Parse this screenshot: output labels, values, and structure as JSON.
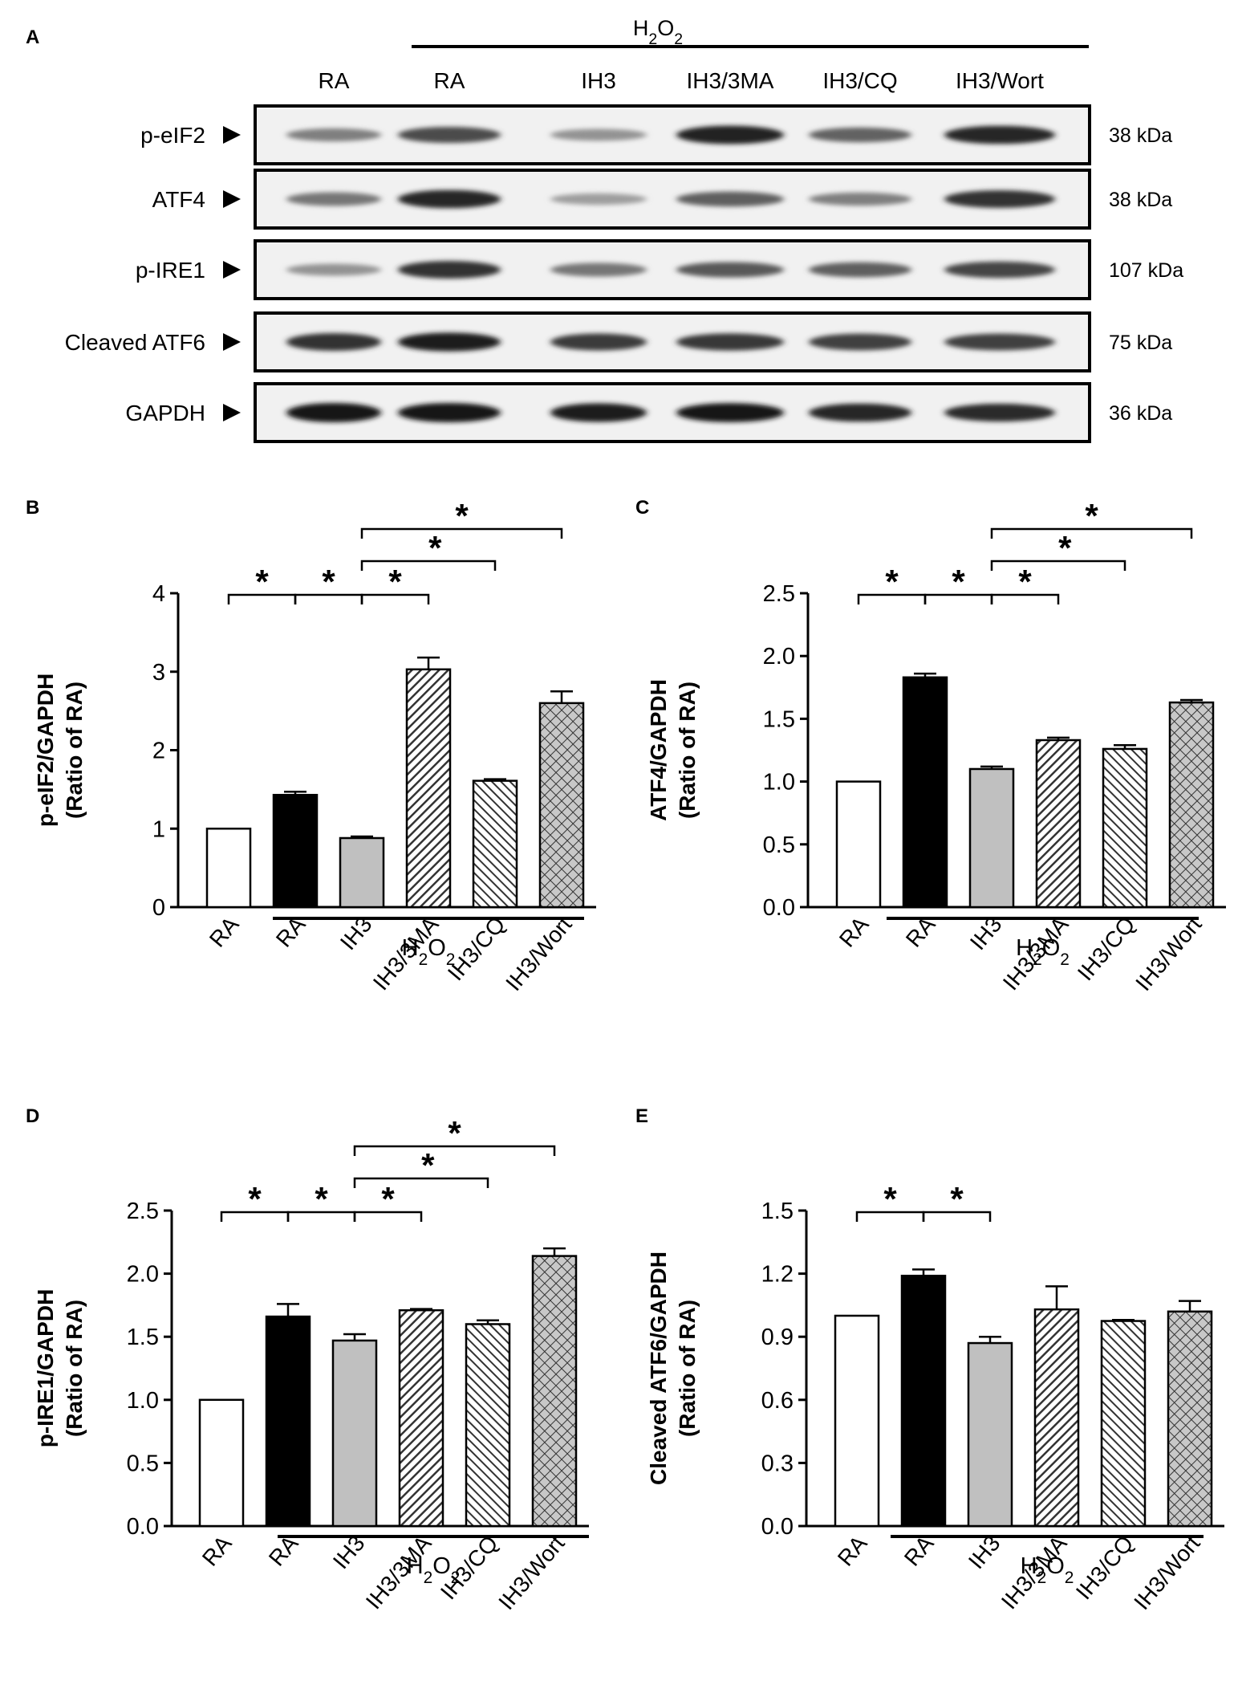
{
  "treatment_label": "H2O2",
  "blot": {
    "panel_label": "A",
    "lanes": [
      "RA",
      "RA",
      "IH3",
      "IH3/3MA",
      "IH3/CQ",
      "IH3/Wort"
    ],
    "rows": [
      {
        "name": "p-eIF2",
        "kda": "38 kDa",
        "intensity": [
          0.45,
          0.72,
          0.35,
          0.92,
          0.6,
          0.9
        ]
      },
      {
        "name": "ATF4",
        "kda": "38 kDa",
        "intensity": [
          0.5,
          0.9,
          0.3,
          0.62,
          0.45,
          0.85
        ]
      },
      {
        "name": "p-IRE1",
        "kda": "107 kDa",
        "intensity": [
          0.35,
          0.85,
          0.5,
          0.65,
          0.62,
          0.75
        ]
      },
      {
        "name": "Cleaved ATF6",
        "kda": "75 kDa",
        "intensity": [
          0.85,
          0.95,
          0.8,
          0.82,
          0.78,
          0.78
        ]
      },
      {
        "name": "GAPDH",
        "kda": "36 kDa",
        "intensity": [
          1.0,
          1.0,
          0.95,
          0.98,
          0.9,
          0.88
        ]
      }
    ]
  },
  "chart_data": [
    {
      "panel": "B",
      "type": "bar",
      "categories": [
        "RA",
        "RA",
        "IH3",
        "IH3/3MA",
        "IH3/CQ",
        "IH3/Wort"
      ],
      "values": [
        1.0,
        1.43,
        0.88,
        3.03,
        1.61,
        2.6
      ],
      "errors": [
        0,
        0.04,
        0.02,
        0.15,
        0.02,
        0.15
      ],
      "ylabel": [
        "p-eIF2/GAPDH",
        "(Ratio of RA)"
      ],
      "ylim": [
        0,
        4
      ],
      "yticks": [
        "0",
        "1",
        "2",
        "3",
        "4"
      ],
      "significance": [
        {
          "from": 0,
          "to": 1,
          "label": "*"
        },
        {
          "from": 1,
          "to": 2,
          "label": "*"
        },
        {
          "from": 2,
          "to": 3,
          "label": "*"
        },
        {
          "from": 2,
          "to": 4,
          "label": "*"
        },
        {
          "from": 2,
          "to": 5,
          "label": "*"
        }
      ]
    },
    {
      "panel": "C",
      "type": "bar",
      "categories": [
        "RA",
        "RA",
        "IH3",
        "IH3/3MA",
        "IH3/CQ",
        "IH3/Wort"
      ],
      "values": [
        1.0,
        1.83,
        1.1,
        1.33,
        1.26,
        1.63
      ],
      "errors": [
        0,
        0.03,
        0.02,
        0.02,
        0.03,
        0.02
      ],
      "ylabel": [
        "ATF4/GAPDH",
        "(Ratio of RA)"
      ],
      "ylim": [
        0,
        2.5
      ],
      "yticks": [
        "0.0",
        "0.5",
        "1.0",
        "1.5",
        "2.0",
        "2.5"
      ],
      "significance": [
        {
          "from": 0,
          "to": 1,
          "label": "*"
        },
        {
          "from": 1,
          "to": 2,
          "label": "*"
        },
        {
          "from": 2,
          "to": 3,
          "label": "*"
        },
        {
          "from": 2,
          "to": 4,
          "label": "*"
        },
        {
          "from": 2,
          "to": 5,
          "label": "*"
        }
      ]
    },
    {
      "panel": "D",
      "type": "bar",
      "categories": [
        "RA",
        "RA",
        "IH3",
        "IH3/3MA",
        "IH3/CQ",
        "IH3/Wort"
      ],
      "values": [
        1.0,
        1.66,
        1.47,
        1.71,
        1.6,
        2.14
      ],
      "errors": [
        0,
        0.1,
        0.05,
        0.01,
        0.03,
        0.06
      ],
      "ylabel": [
        "p-IRE1/GAPDH",
        "(Ratio of RA)"
      ],
      "ylim": [
        0,
        2.5
      ],
      "yticks": [
        "0.0",
        "0.5",
        "1.0",
        "1.5",
        "2.0",
        "2.5"
      ],
      "significance": [
        {
          "from": 0,
          "to": 1,
          "label": "*"
        },
        {
          "from": 1,
          "to": 2,
          "label": "*"
        },
        {
          "from": 2,
          "to": 3,
          "label": "*"
        },
        {
          "from": 2,
          "to": 4,
          "label": "*"
        },
        {
          "from": 2,
          "to": 5,
          "label": "*"
        }
      ]
    },
    {
      "panel": "E",
      "type": "bar",
      "categories": [
        "RA",
        "RA",
        "IH3",
        "IH3/3MA",
        "IH3/CQ",
        "IH3/Wort"
      ],
      "values": [
        1.0,
        1.19,
        0.87,
        1.03,
        0.975,
        1.02
      ],
      "errors": [
        0,
        0.03,
        0.03,
        0.11,
        0.005,
        0.05
      ],
      "ylabel": [
        "Cleaved ATF6/GAPDH",
        "(Ratio of RA)"
      ],
      "ylim": [
        0,
        1.5
      ],
      "yticks": [
        "0.0",
        "0.3",
        "0.6",
        "0.9",
        "1.2",
        "1.5"
      ],
      "significance": [
        {
          "from": 0,
          "to": 1,
          "label": "*"
        },
        {
          "from": 1,
          "to": 2,
          "label": "*"
        }
      ]
    }
  ]
}
